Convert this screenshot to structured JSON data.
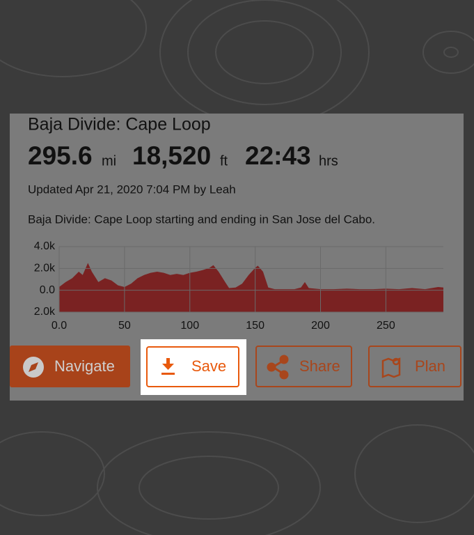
{
  "route": {
    "title": "Baja Divide: Cape Loop",
    "stats": [
      {
        "value": "295.6",
        "unit": "mi"
      },
      {
        "value": "18,520",
        "unit": "ft"
      },
      {
        "value": "22:43",
        "unit": "hrs"
      }
    ],
    "updated": "Updated Apr 21, 2020 7:04 PM by Leah",
    "description": "Baja Divide: Cape Loop starting and ending in San Jose del Cabo."
  },
  "chart_data": {
    "type": "area",
    "x": [
      0,
      5,
      10,
      15,
      18,
      22,
      25,
      30,
      35,
      40,
      45,
      50,
      55,
      60,
      65,
      70,
      75,
      80,
      85,
      90,
      95,
      100,
      105,
      110,
      115,
      118,
      122,
      127,
      130,
      135,
      140,
      145,
      150,
      152,
      156,
      160,
      165,
      170,
      180,
      185,
      188,
      191,
      200,
      210,
      220,
      230,
      240,
      250,
      260,
      270,
      280,
      290,
      294
    ],
    "values": [
      300,
      750,
      1100,
      1700,
      1400,
      2500,
      1700,
      750,
      1100,
      900,
      450,
      300,
      600,
      1100,
      1400,
      1600,
      1700,
      1600,
      1400,
      1500,
      1400,
      1600,
      1700,
      1850,
      2050,
      2300,
      1700,
      750,
      200,
      250,
      600,
      1400,
      2050,
      2250,
      1700,
      250,
      100,
      100,
      100,
      250,
      750,
      200,
      100,
      100,
      150,
      100,
      100,
      150,
      100,
      200,
      100,
      300,
      250
    ],
    "color": "#7a2222",
    "xlim": [
      0,
      294
    ],
    "ylim": [
      -2000,
      4000
    ],
    "xticks": [
      {
        "value": 0,
        "label": "0.0"
      },
      50,
      100,
      150,
      200,
      250
    ],
    "yticks": [
      {
        "value": 4000,
        "label": "4.0k"
      },
      {
        "value": 2000,
        "label": "2.0k"
      },
      {
        "value": 0,
        "label": "0.0"
      },
      {
        "value": -2000,
        "label": "2.0k"
      }
    ],
    "grid": true
  },
  "buttons": [
    "Navigate",
    "Save",
    "Share",
    "Plan"
  ]
}
